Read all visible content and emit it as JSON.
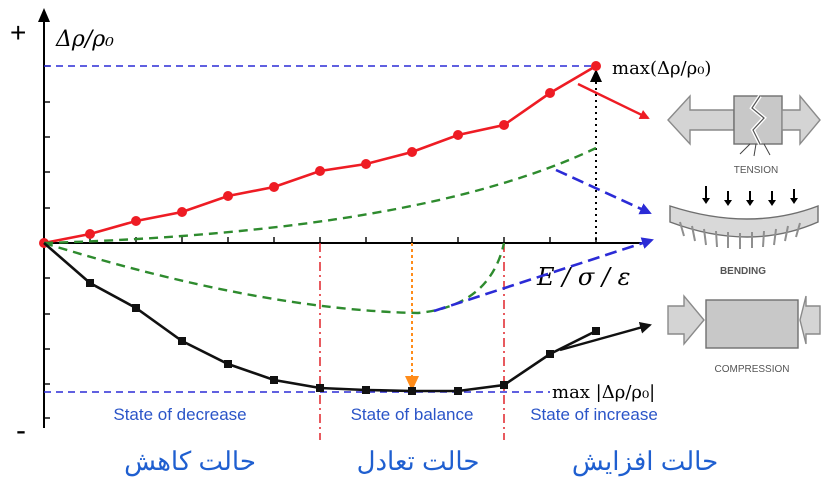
{
  "axis": {
    "y_label": "Δρ/ρ₀",
    "plus_sign": "+",
    "minus_sign": "-",
    "x_label": "E / σ / ε"
  },
  "annotations": {
    "max_top": "max(Δρ/ρ₀)",
    "max_bottom": "max |Δρ/ρ₀|"
  },
  "states": {
    "decrease": "State of decrease",
    "balance": "State of balance",
    "increase": "State of increase"
  },
  "persian": {
    "decrease": "حالت کاهش",
    "balance": "حالت تعادل",
    "increase": "حالت افزایش"
  },
  "modes": {
    "tension": "TENSION",
    "bending": "BENDING",
    "compression": "COMPRESSION"
  },
  "colors": {
    "tension_curve": "#ee1c24",
    "bending_curve": "#2e8b2e",
    "compression_curve": "#111111",
    "guide_lines": "#2b2bd6",
    "state_dividers": "#e0242a",
    "balance_marker": "#ff8c1a",
    "state_text": "#2b55c8",
    "persian_text": "#1f5fd0"
  },
  "curves": {
    "tension_markers": 13,
    "compression_markers": 12
  }
}
